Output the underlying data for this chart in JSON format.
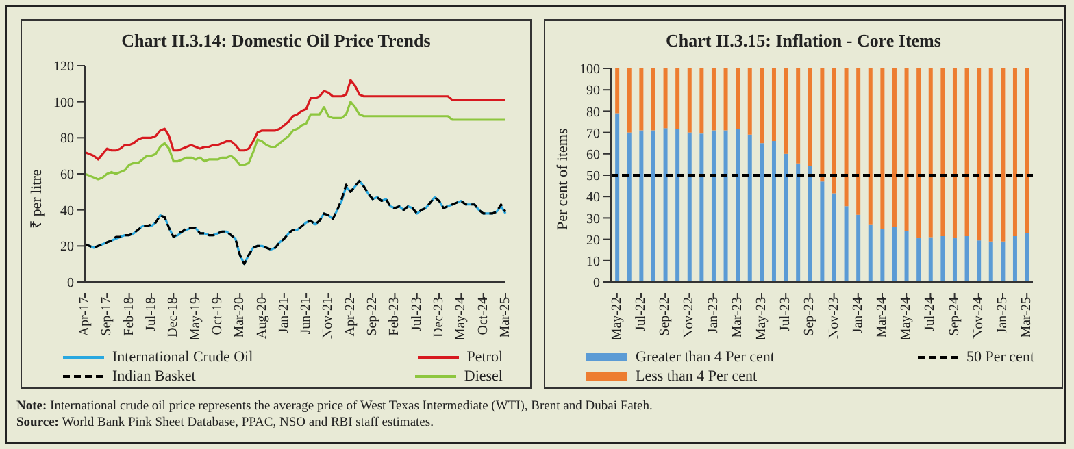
{
  "chart_data": [
    {
      "type": "line",
      "title": "Chart II.3.14: Domestic Oil Price Trends",
      "ylabel": "₹ per litre",
      "ylim": [
        0,
        120
      ],
      "yticks": [
        0,
        20,
        40,
        60,
        80,
        100,
        120
      ],
      "legend": "bottom",
      "categories": [
        "Apr-17",
        null,
        null,
        null,
        null,
        "Sep-17",
        null,
        null,
        null,
        null,
        "Feb-18",
        null,
        null,
        null,
        null,
        "Jul-18",
        null,
        null,
        null,
        null,
        "Dec-18",
        null,
        null,
        null,
        null,
        "May-19",
        null,
        null,
        null,
        null,
        "Oct-19",
        null,
        null,
        null,
        null,
        "Mar-20",
        null,
        null,
        null,
        null,
        "Aug-20",
        null,
        null,
        null,
        null,
        "Jan-21",
        null,
        null,
        null,
        null,
        "Jun-21",
        null,
        null,
        null,
        null,
        "Nov-21",
        null,
        null,
        null,
        null,
        "Apr-22",
        null,
        null,
        null,
        null,
        "Sep-22",
        null,
        null,
        null,
        null,
        "Feb-23",
        null,
        null,
        null,
        null,
        "Jul-23",
        null,
        null,
        null,
        null,
        "Dec-23",
        null,
        null,
        null,
        null,
        "May-24",
        null,
        null,
        null,
        null,
        "Oct-24",
        null,
        null,
        null,
        null,
        "Mar-25"
      ],
      "series": [
        {
          "name": "International Crude Oil",
          "color": "#29a8e0",
          "values": [
            21,
            20,
            19,
            20,
            21,
            22,
            23,
            24,
            25,
            26,
            26,
            27,
            29,
            31,
            31,
            31,
            33,
            37,
            36,
            30,
            25,
            26,
            28,
            29,
            30,
            30,
            27,
            27,
            26,
            26,
            27,
            28,
            28,
            26,
            24,
            15,
            10,
            15,
            19,
            20,
            20,
            19,
            18,
            19,
            22,
            24,
            27,
            29,
            29,
            31,
            33,
            34,
            32,
            34,
            38,
            37,
            35,
            40,
            45,
            53,
            50,
            53,
            56,
            53,
            49,
            46,
            47,
            45,
            46,
            42,
            41,
            42,
            40,
            42,
            41,
            38,
            40,
            41,
            44,
            47,
            45,
            41,
            42,
            43,
            44,
            45,
            43,
            43,
            43,
            40,
            38,
            38,
            38,
            39,
            42,
            38
          ]
        },
        {
          "name": "Indian Basket",
          "color": "#000000",
          "line_style": "dashed",
          "values": [
            21,
            20,
            19,
            20,
            21,
            22,
            23,
            25,
            25,
            26,
            26,
            27,
            29,
            31,
            31,
            32,
            33,
            37,
            36,
            30,
            25,
            27,
            28,
            30,
            30,
            30,
            27,
            27,
            26,
            26,
            27,
            28,
            28,
            26,
            24,
            15,
            10,
            15,
            19,
            20,
            20,
            19,
            18,
            19,
            22,
            24,
            27,
            29,
            29,
            31,
            33,
            34,
            32,
            34,
            38,
            37,
            35,
            40,
            46,
            54,
            50,
            53,
            56,
            53,
            49,
            46,
            47,
            45,
            46,
            42,
            41,
            42,
            40,
            42,
            41,
            38,
            40,
            41,
            44,
            47,
            45,
            41,
            42,
            43,
            44,
            45,
            43,
            43,
            43,
            40,
            38,
            38,
            38,
            39,
            43,
            39
          ]
        },
        {
          "name": "Petrol",
          "color": "#d7191f",
          "values": [
            72,
            71,
            70,
            68,
            71,
            74,
            73,
            73,
            74,
            76,
            76,
            77,
            79,
            80,
            80,
            80,
            81,
            84,
            85,
            81,
            73,
            73,
            74,
            75,
            76,
            75,
            74,
            75,
            75,
            76,
            76,
            77,
            78,
            78,
            76,
            73,
            73,
            74,
            78,
            83,
            84,
            84,
            84,
            84,
            85,
            87,
            89,
            92,
            93,
            95,
            96,
            102,
            102,
            103,
            106,
            105,
            103,
            103,
            103,
            104,
            112,
            109,
            104,
            103,
            103,
            103,
            103,
            103,
            103,
            103,
            103,
            103,
            103,
            103,
            103,
            103,
            103,
            103,
            103,
            103,
            103,
            103,
            103,
            101,
            101,
            101,
            101,
            101,
            101,
            101,
            101,
            101,
            101,
            101,
            101,
            101
          ]
        },
        {
          "name": "Diesel",
          "color": "#8dc63f",
          "values": [
            60,
            59,
            58,
            57,
            58,
            60,
            61,
            60,
            61,
            62,
            65,
            66,
            66,
            68,
            70,
            70,
            71,
            75,
            77,
            74,
            67,
            67,
            68,
            69,
            69,
            68,
            69,
            67,
            68,
            68,
            68,
            69,
            69,
            70,
            68,
            65,
            65,
            66,
            72,
            79,
            78,
            76,
            75,
            75,
            77,
            79,
            81,
            84,
            85,
            87,
            88,
            93,
            93,
            93,
            97,
            92,
            91,
            91,
            91,
            93,
            100,
            97,
            93,
            92,
            92,
            92,
            92,
            92,
            92,
            92,
            92,
            92,
            92,
            92,
            92,
            92,
            92,
            92,
            92,
            92,
            92,
            92,
            92,
            90,
            90,
            90,
            90,
            90,
            90,
            90,
            90,
            90,
            90,
            90,
            90,
            90
          ]
        }
      ],
      "annotations": [
        "Note: International crude oil price represents the average price of West Texas Intermediate (WTI), Brent and Dubai Fateh.",
        "Source: World Bank Pink Sheet Database, PPAC, NSO and RBI staff estimates."
      ]
    },
    {
      "type": "bar",
      "stacked": true,
      "title": "Chart II.3.15: Inflation - Core Items",
      "ylabel": "Per cent of items",
      "ylim": [
        0,
        100
      ],
      "yticks": [
        0,
        10,
        20,
        30,
        40,
        50,
        60,
        70,
        80,
        90,
        100
      ],
      "legend": "bottom",
      "categories": [
        "May-22",
        null,
        "Jul-22",
        null,
        "Sep-22",
        null,
        "Nov-22",
        null,
        "Jan-23",
        null,
        "Mar-23",
        null,
        "May-23",
        null,
        "Jul-23",
        null,
        "Sep-23",
        null,
        "Nov-23",
        null,
        "Jan-24",
        null,
        "Mar-24",
        null,
        "May-24",
        null,
        "Jul-24",
        null,
        "Sep-24",
        null,
        "Nov-24",
        null,
        "Jan-25",
        null,
        "Mar-25"
      ],
      "series": [
        {
          "name": "Greater than 4 Per cent",
          "color": "#5b9bd5",
          "values": [
            79,
            70,
            71,
            71,
            72,
            71.5,
            70,
            69.5,
            71,
            71,
            71.5,
            69,
            65,
            66,
            60,
            55.5,
            54.5,
            47,
            41.5,
            35.5,
            31.5,
            27,
            25,
            26,
            24,
            20.5,
            21,
            21.5,
            20.5,
            21.5,
            19.5,
            19,
            19,
            21.5,
            23
          ]
        },
        {
          "name": "Less than 4 Per cent",
          "color": "#ed7d31",
          "values": [
            21,
            30,
            29,
            29,
            28,
            28.5,
            30,
            30.5,
            29,
            29,
            28.5,
            31,
            35,
            34,
            40,
            44.5,
            45.5,
            53,
            58.5,
            64.5,
            68.5,
            73,
            75,
            74,
            76,
            79.5,
            79,
            78.5,
            79.5,
            78.5,
            80.5,
            81,
            81,
            78.5,
            77
          ]
        }
      ],
      "ref_lines": [
        {
          "axis": "y",
          "value": 50,
          "label": "50 Per cent",
          "color": "#000000",
          "line_style": "dashed"
        }
      ]
    }
  ]
}
